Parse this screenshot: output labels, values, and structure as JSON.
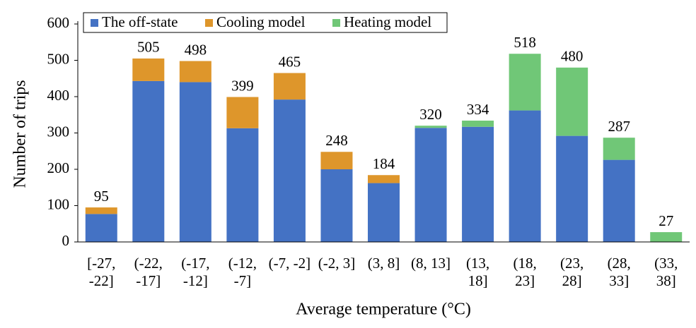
{
  "chart_data": {
    "type": "stacked_bar",
    "x_label": "Average temperature (°C)",
    "y_label": "Number of trips",
    "categories": [
      "[-27, -22]",
      "(-22, -17]",
      "(-17, -12]",
      "(-12, -7]",
      "(-7, -2]",
      "(-2, 3]",
      "(3, 8]",
      "(8, 13]",
      "(13, 18]",
      "(18, 23]",
      "(23, 28]",
      "(28, 33]",
      "(33, 38]"
    ],
    "series": [
      {
        "name": "The off-state",
        "color": "#4472c4",
        "values": [
          77,
          443,
          440,
          313,
          392,
          200,
          162,
          314,
          317,
          362,
          292,
          226,
          0
        ]
      },
      {
        "name": "Cooling model",
        "color": "#de962b",
        "values": [
          18,
          62,
          58,
          86,
          73,
          48,
          22,
          0,
          0,
          0,
          0,
          0,
          0
        ]
      },
      {
        "name": "Heating model",
        "color": "#70c777",
        "values": [
          0,
          0,
          0,
          0,
          0,
          0,
          0,
          6,
          17,
          156,
          188,
          61,
          27
        ]
      }
    ],
    "totals": [
      95,
      505,
      498,
      399,
      465,
      248,
      184,
      320,
      334,
      518,
      480,
      287,
      27
    ],
    "ylim": [
      0,
      600
    ],
    "yticks": [
      0,
      100,
      200,
      300,
      400,
      500,
      600
    ],
    "legend": "upper-left"
  }
}
